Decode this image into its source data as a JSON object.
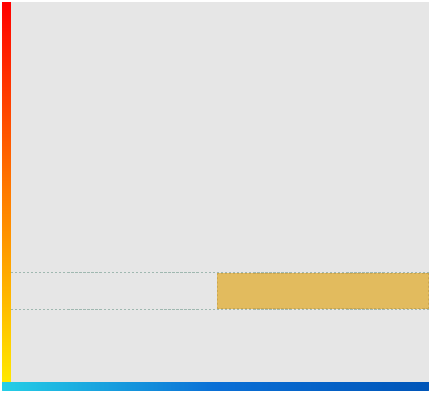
{
  "colors": {
    "panel_background": "#e6e6e6",
    "vertical_gradient": [
      "#ff0000",
      "#ff7a00",
      "#ffe800"
    ],
    "horizontal_gradient": [
      "#25cfe6",
      "#0a6fd6",
      "#0055b8"
    ],
    "guide_line": "#9fb8b0",
    "selection_fill": "#e2bb5e"
  },
  "icons": {
    "vertical_bar": "vertical-color-gradient-bar",
    "horizontal_bar": "horizontal-color-gradient-bar"
  }
}
